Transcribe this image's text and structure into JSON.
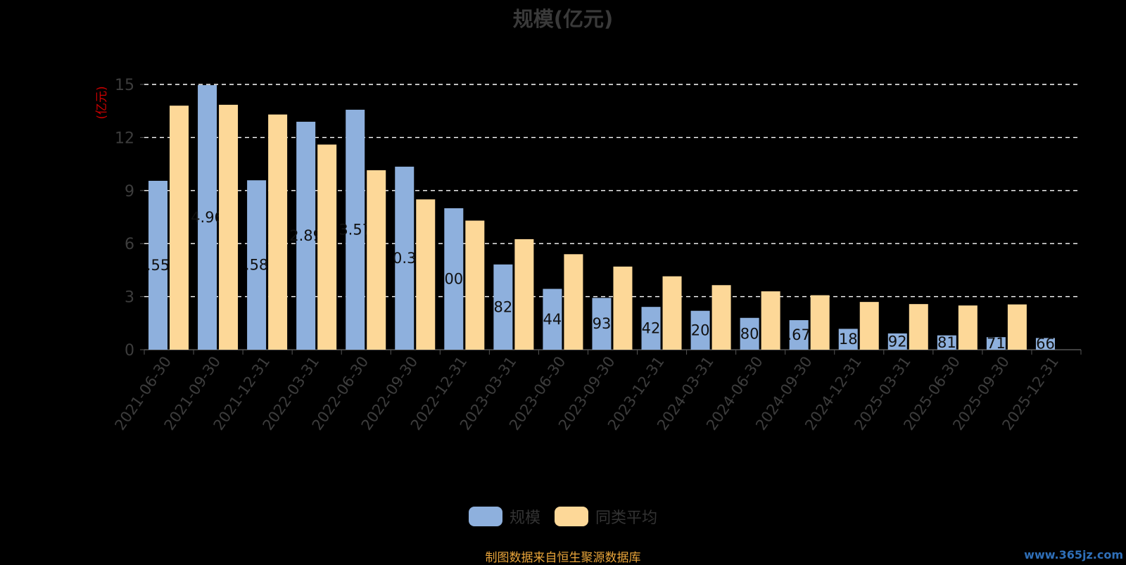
{
  "colors": {
    "series1": "#8eb0dd",
    "series2": "#fdd898",
    "grid": "#ffffff",
    "axis": "#555555",
    "tick_text": "#3d3d3d",
    "ylabel": "#cc0000",
    "value_label": "#111111",
    "source_text": "#e8a43a"
  },
  "chart_data": {
    "type": "bar",
    "title": "规模(亿元)",
    "ylabel": "(亿元)",
    "xlabel": "",
    "ylim": [
      0,
      15
    ],
    "yticks": [
      "0",
      "3",
      "6",
      "9",
      "12",
      "15"
    ],
    "grid": true,
    "legend_position": "bottom",
    "categories": [
      "2021-06-30",
      "2021-09-30",
      "2021-12-31",
      "2022-03-31",
      "2022-06-30",
      "2022-09-30",
      "2022-12-31",
      "2023-03-31",
      "2023-06-30",
      "2023-09-30",
      "2023-12-31",
      "2024-03-31",
      "2024-06-30",
      "2024-09-30",
      "2024-12-31",
      "2025-03-31",
      "2025-06-30",
      "2025-09-30",
      "2025-12-31"
    ],
    "series": [
      {
        "name": "规模",
        "values": [
          9.55,
          14.96,
          9.58,
          12.89,
          13.57,
          10.35,
          8.0,
          4.82,
          3.44,
          2.93,
          2.42,
          2.2,
          1.8,
          1.67,
          1.18,
          0.92,
          0.81,
          0.71,
          0.66
        ],
        "labels": [
          ".55",
          "4.96",
          ".58",
          "2.89",
          "3.57",
          "0.3",
          "00",
          "82",
          "44",
          "93",
          "42",
          "20",
          "80",
          ".67",
          "18",
          "92",
          "81",
          "71",
          "66"
        ]
      },
      {
        "name": "同类平均",
        "values": [
          13.8,
          13.85,
          13.3,
          11.6,
          10.15,
          8.5,
          7.3,
          6.25,
          5.4,
          4.7,
          4.15,
          3.65,
          3.3,
          3.08,
          2.7,
          2.58,
          2.5,
          2.56,
          null
        ]
      }
    ]
  },
  "footer": {
    "source": "制图数据来自恒生聚源数据库",
    "watermark": "www.365jz.com"
  }
}
